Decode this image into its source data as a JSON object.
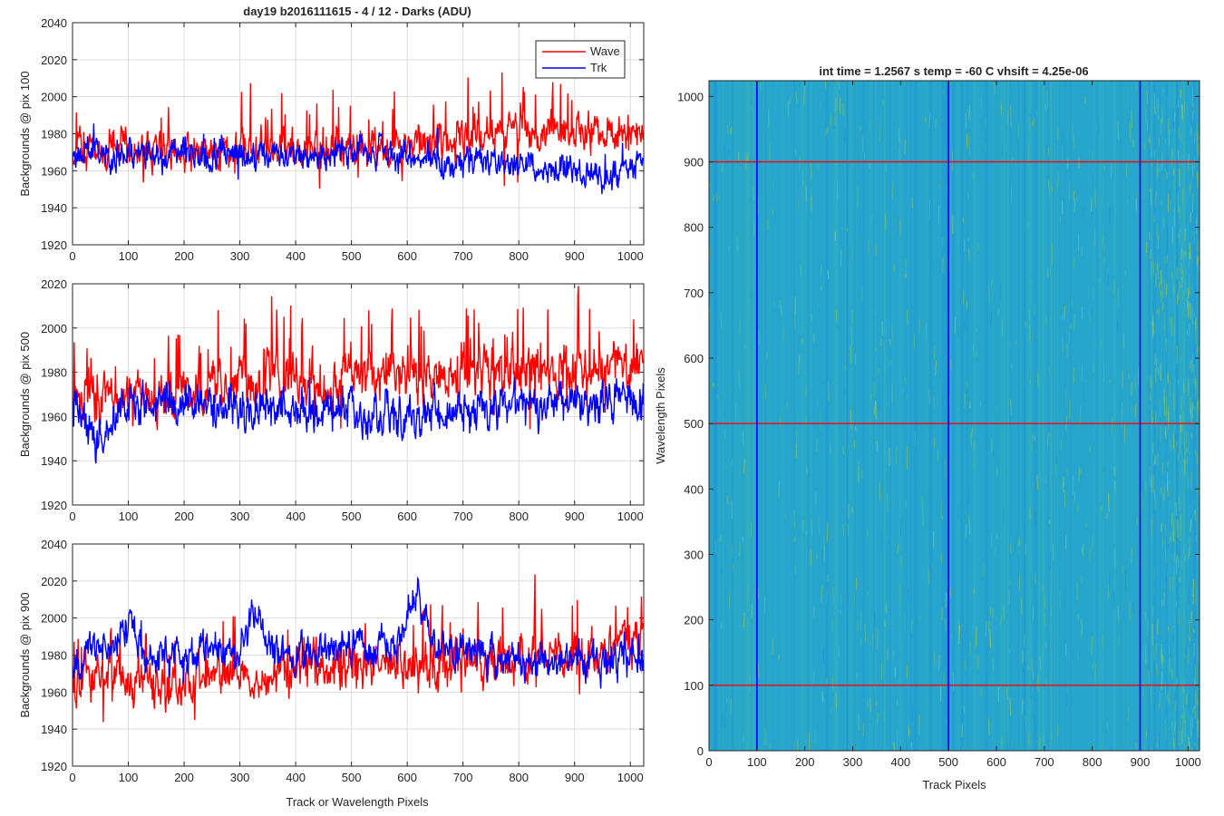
{
  "figure": {
    "left_title": "day19 b2016111615 - 4 / 12 - Darks (ADU)",
    "right_title": "int time = 1.2567 s    temp = -60 C    vhsift = 4.25e-06",
    "shared_xlabel": "Track or Wavelength Pixels"
  },
  "legend": {
    "entries": [
      "Wave",
      "Trk"
    ],
    "colors": [
      "#ff0000",
      "#0000ff"
    ],
    "placement": "top-right"
  },
  "chart_data": [
    {
      "type": "line",
      "ylabel": "Backgrounds @ pix 100",
      "xlim": [
        0,
        1024
      ],
      "ylim": [
        1920,
        2040
      ],
      "xticks": [
        0,
        100,
        200,
        300,
        400,
        500,
        600,
        700,
        800,
        900,
        1000
      ],
      "yticks": [
        1920,
        1940,
        1960,
        1980,
        2000,
        2020,
        2040
      ],
      "grid": true,
      "series": [
        {
          "name": "Wave",
          "color": "#ff0000",
          "baseline": [
            [
              0,
              1972
            ],
            [
              200,
              1970
            ],
            [
              400,
              1972
            ],
            [
              600,
              1974
            ],
            [
              800,
              1980
            ],
            [
              1024,
              1982
            ]
          ],
          "noise": 7,
          "spike_rate": 0.07,
          "spike_amp": 28,
          "seed": 11
        },
        {
          "name": "Trk",
          "color": "#0000ff",
          "baseline": [
            [
              0,
              1970
            ],
            [
              300,
              1968
            ],
            [
              500,
              1970
            ],
            [
              700,
              1966
            ],
            [
              900,
              1960
            ],
            [
              950,
              1955
            ],
            [
              1024,
              1968
            ]
          ],
          "noise": 6,
          "spike_rate": 0.02,
          "spike_amp": 12,
          "seed": 23
        }
      ],
      "extremes": {
        "Wave_max": 2015,
        "Wave_min": 1936,
        "Trk_min": 1942
      }
    },
    {
      "type": "line",
      "ylabel": "Backgrounds @ pix 500",
      "xlim": [
        0,
        1024
      ],
      "ylim": [
        1920,
        2020
      ],
      "xticks": [
        0,
        100,
        200,
        300,
        400,
        500,
        600,
        700,
        800,
        900,
        1000
      ],
      "yticks": [
        1920,
        1940,
        1960,
        1980,
        2000,
        2020
      ],
      "grid": true,
      "series": [
        {
          "name": "Wave",
          "color": "#ff0000",
          "baseline": [
            [
              0,
              1970
            ],
            [
              200,
              1968
            ],
            [
              300,
              1976
            ],
            [
              500,
              1978
            ],
            [
              700,
              1980
            ],
            [
              900,
              1982
            ],
            [
              1024,
              1985
            ]
          ],
          "noise": 8,
          "spike_rate": 0.08,
          "spike_amp": 30,
          "seed": 37
        },
        {
          "name": "Trk",
          "color": "#0000ff",
          "baseline": [
            [
              0,
              1968
            ],
            [
              40,
              1950
            ],
            [
              100,
              1966
            ],
            [
              300,
              1964
            ],
            [
              500,
              1962
            ],
            [
              600,
              1958
            ],
            [
              700,
              1963
            ],
            [
              900,
              1966
            ],
            [
              1024,
              1968
            ]
          ],
          "noise": 7,
          "spike_rate": 0.02,
          "spike_amp": 12,
          "seed": 41
        }
      ],
      "extremes": {
        "Wave_max": 2018,
        "Wave_min": 1935,
        "Trk_min": 1940
      }
    },
    {
      "type": "line",
      "ylabel": "Backgrounds @ pix 900",
      "xlim": [
        0,
        1024
      ],
      "ylim": [
        1920,
        2040
      ],
      "xticks": [
        0,
        100,
        200,
        300,
        400,
        500,
        600,
        700,
        800,
        900,
        1000
      ],
      "yticks": [
        1920,
        1940,
        1960,
        1980,
        2000,
        2020,
        2040
      ],
      "grid": true,
      "series": [
        {
          "name": "Wave",
          "color": "#ff0000",
          "baseline": [
            [
              0,
              1968
            ],
            [
              200,
              1966
            ],
            [
              400,
              1972
            ],
            [
              600,
              1974
            ],
            [
              800,
              1980
            ],
            [
              1024,
              1985
            ]
          ],
          "noise": 9,
          "spike_rate": 0.07,
          "spike_amp": 30,
          "seed": 53
        },
        {
          "name": "Trk",
          "color": "#0000ff",
          "baseline": [
            [
              0,
              1978
            ],
            [
              80,
              1985
            ],
            [
              105,
              2005
            ],
            [
              130,
              1980
            ],
            [
              300,
              1982
            ],
            [
              330,
              2008
            ],
            [
              360,
              1982
            ],
            [
              580,
              1985
            ],
            [
              620,
              2012
            ],
            [
              650,
              1985
            ],
            [
              800,
              1976
            ],
            [
              1024,
              1978
            ]
          ],
          "noise": 7,
          "spike_rate": 0.02,
          "spike_amp": 12,
          "seed": 67
        }
      ],
      "extremes": {
        "Wave_max": 2033,
        "Wave_min": 1931,
        "Trk_max": 2021
      }
    },
    {
      "type": "heatmap",
      "xlabel": "Track Pixels",
      "ylabel": "Wavelength Pixels",
      "xlim": [
        0,
        1024
      ],
      "ylim": [
        0,
        1024
      ],
      "xticks": [
        0,
        100,
        200,
        300,
        400,
        500,
        600,
        700,
        800,
        900,
        1000
      ],
      "yticks": [
        0,
        100,
        200,
        300,
        400,
        500,
        600,
        700,
        800,
        900,
        1000
      ],
      "colormap": "parula",
      "base_color": "#27a6cd",
      "streak_colors": [
        "#6cc27a",
        "#a0c94a",
        "#1f8fd6"
      ],
      "vertical_markers": {
        "color": "#0000ff",
        "x": [
          100,
          500,
          900
        ]
      },
      "horizontal_markers": {
        "color": "#ff0000",
        "y": [
          100,
          500,
          900
        ]
      }
    }
  ]
}
